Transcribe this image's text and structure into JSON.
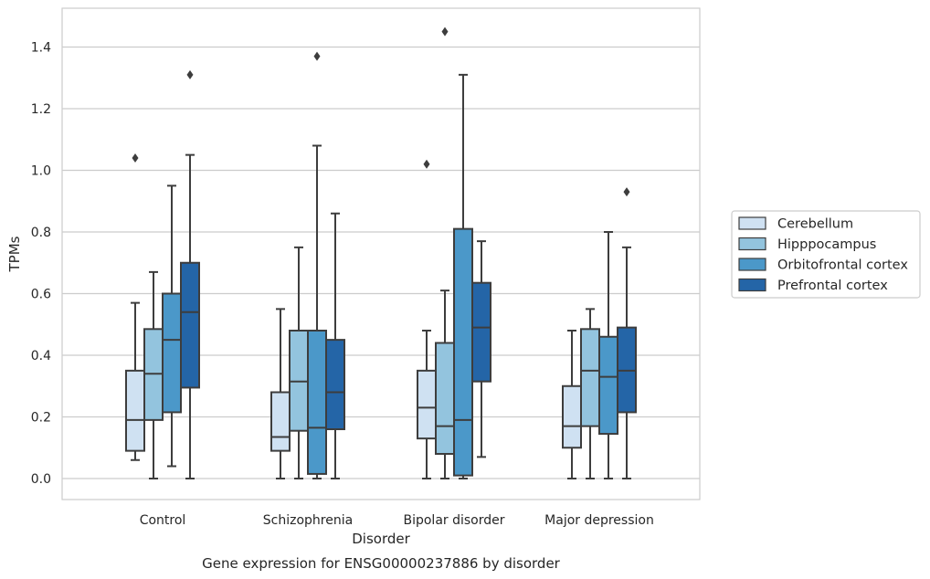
{
  "chart_data": {
    "type": "box",
    "title": "",
    "caption": "Gene expression for ENSG00000237886 by disorder",
    "xlabel": "Disorder",
    "ylabel": "TPMs",
    "ylim": [
      -0.07,
      1.53
    ],
    "yticks": [
      "0.0",
      "0.2",
      "0.4",
      "0.6",
      "0.8",
      "1.0",
      "1.2",
      "1.4"
    ],
    "grid": "horizontal",
    "legend_position": "right",
    "categories": [
      "Control",
      "Schizophrenia",
      "Bipolar disorder",
      "Major depression"
    ],
    "series": [
      {
        "name": "Cerebellum",
        "color": "#cfe1f2",
        "boxes": [
          {
            "whisker_low": 0.06,
            "q1": 0.09,
            "median": 0.19,
            "q3": 0.35,
            "whisker_high": 0.57,
            "outliers": [
              1.04
            ]
          },
          {
            "whisker_low": 0.0,
            "q1": 0.09,
            "median": 0.135,
            "q3": 0.28,
            "whisker_high": 0.55,
            "outliers": []
          },
          {
            "whisker_low": 0.0,
            "q1": 0.13,
            "median": 0.23,
            "q3": 0.35,
            "whisker_high": 0.48,
            "outliers": [
              1.02
            ]
          },
          {
            "whisker_low": 0.0,
            "q1": 0.1,
            "median": 0.17,
            "q3": 0.3,
            "whisker_high": 0.48,
            "outliers": []
          }
        ]
      },
      {
        "name": "Hipppocampus",
        "color": "#93c4de",
        "boxes": [
          {
            "whisker_low": 0.0,
            "q1": 0.19,
            "median": 0.34,
            "q3": 0.485,
            "whisker_high": 0.67,
            "outliers": []
          },
          {
            "whisker_low": 0.0,
            "q1": 0.155,
            "median": 0.315,
            "q3": 0.48,
            "whisker_high": 0.75,
            "outliers": []
          },
          {
            "whisker_low": 0.0,
            "q1": 0.08,
            "median": 0.17,
            "q3": 0.44,
            "whisker_high": 0.61,
            "outliers": [
              1.45
            ]
          },
          {
            "whisker_low": 0.0,
            "q1": 0.17,
            "median": 0.35,
            "q3": 0.485,
            "whisker_high": 0.55,
            "outliers": []
          }
        ]
      },
      {
        "name": "Orbitofrontal cortex",
        "color": "#4b98c9",
        "boxes": [
          {
            "whisker_low": 0.04,
            "q1": 0.215,
            "median": 0.45,
            "q3": 0.6,
            "whisker_high": 0.95,
            "outliers": []
          },
          {
            "whisker_low": 0.0,
            "q1": 0.015,
            "median": 0.165,
            "q3": 0.48,
            "whisker_high": 1.08,
            "outliers": [
              1.37
            ]
          },
          {
            "whisker_low": 0.0,
            "q1": 0.01,
            "median": 0.19,
            "q3": 0.81,
            "whisker_high": 1.31,
            "outliers": []
          },
          {
            "whisker_low": 0.0,
            "q1": 0.145,
            "median": 0.33,
            "q3": 0.46,
            "whisker_high": 0.8,
            "outliers": []
          }
        ]
      },
      {
        "name": "Prefrontal cortex",
        "color": "#2465a7",
        "boxes": [
          {
            "whisker_low": 0.0,
            "q1": 0.295,
            "median": 0.54,
            "q3": 0.7,
            "whisker_high": 1.05,
            "outliers": [
              1.31
            ]
          },
          {
            "whisker_low": 0.0,
            "q1": 0.16,
            "median": 0.28,
            "q3": 0.45,
            "whisker_high": 0.86,
            "outliers": []
          },
          {
            "whisker_low": 0.07,
            "q1": 0.315,
            "median": 0.49,
            "q3": 0.635,
            "whisker_high": 0.77,
            "outliers": []
          },
          {
            "whisker_low": 0.0,
            "q1": 0.215,
            "median": 0.35,
            "q3": 0.49,
            "whisker_high": 0.75,
            "outliers": [
              0.93
            ]
          }
        ]
      }
    ]
  }
}
